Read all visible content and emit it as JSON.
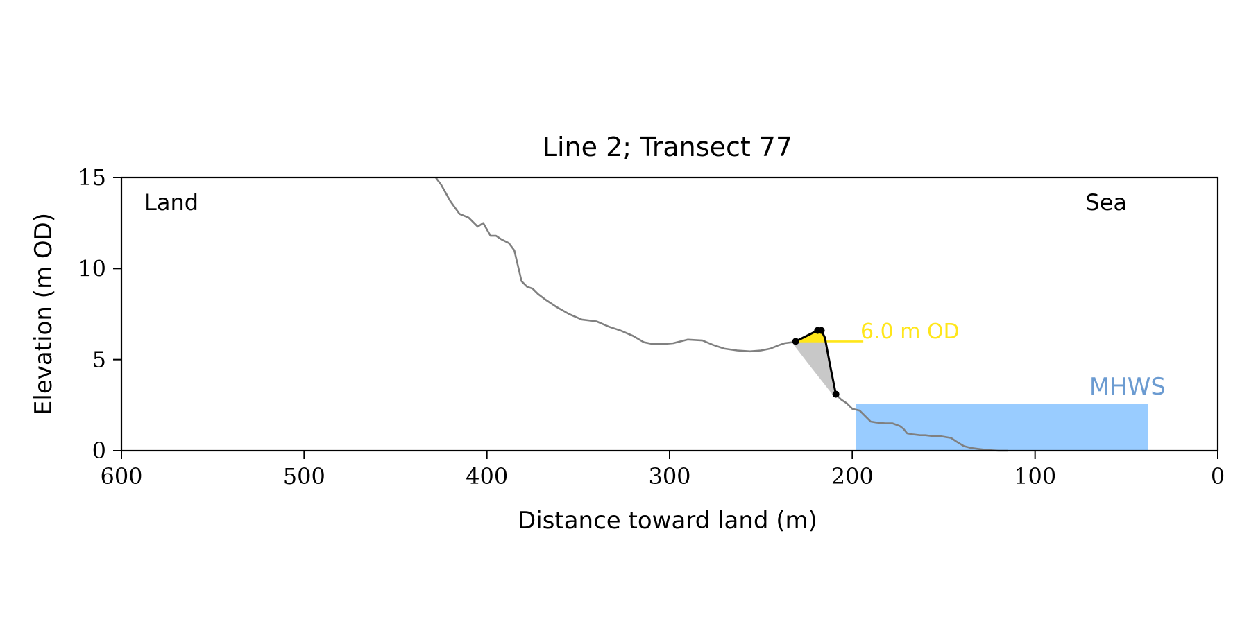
{
  "chart_data": {
    "type": "line",
    "title": "Line 2; Transect 77",
    "xlabel": "Distance toward land (m)",
    "ylabel": "Elevation (m OD)",
    "xlim": [
      600,
      0
    ],
    "ylim": [
      0,
      15
    ],
    "x_ticks": [
      600,
      500,
      400,
      300,
      200,
      100,
      0
    ],
    "y_ticks": [
      0,
      5,
      10,
      15
    ],
    "grid": false,
    "annotations": {
      "land": "Land",
      "sea": "Sea",
      "od_label": "6.0 m OD",
      "mhws_label": "MHWS"
    },
    "colors": {
      "profile": "#808080",
      "dune": "#000000",
      "od_fill": "#ffe61a",
      "od_text": "#ffe61a",
      "sediment_fill": "#c8c8c8",
      "water": "#99ccff",
      "mhws_text": "#6b9bd1"
    },
    "series": [
      {
        "x": [
          428,
          425,
          420,
          415,
          410,
          405,
          402,
          398,
          395,
          392,
          388,
          385,
          381,
          378,
          375,
          372,
          368,
          362,
          355,
          348,
          340,
          333,
          327,
          320,
          314,
          309,
          304,
          298,
          290,
          282,
          276,
          270,
          263,
          256,
          250,
          245,
          240,
          237,
          233
        ],
        "y": [
          15.0,
          14.6,
          13.7,
          13.0,
          12.8,
          12.3,
          12.5,
          11.8,
          11.8,
          11.6,
          11.4,
          11.0,
          9.3,
          9.0,
          8.9,
          8.6,
          8.3,
          7.9,
          7.5,
          7.2,
          7.1,
          6.8,
          6.6,
          6.3,
          5.95,
          5.85,
          5.85,
          5.9,
          6.1,
          6.05,
          5.8,
          5.6,
          5.5,
          5.45,
          5.5,
          5.6,
          5.8,
          5.9,
          5.95
        ]
      },
      {
        "x": [
          209,
          206,
          203,
          200,
          196,
          193,
          190,
          187,
          182,
          178,
          174,
          172,
          170,
          167,
          163,
          160,
          156,
          152,
          149,
          146,
          143,
          139,
          135,
          131,
          127,
          123,
          120,
          115
        ],
        "y": [
          3.1,
          2.8,
          2.6,
          2.3,
          2.2,
          1.9,
          1.6,
          1.55,
          1.5,
          1.5,
          1.35,
          1.2,
          0.95,
          0.9,
          0.85,
          0.85,
          0.8,
          0.8,
          0.75,
          0.7,
          0.5,
          0.25,
          0.15,
          0.1,
          0.05,
          0.02,
          0.0,
          0.0
        ]
      },
      {
        "x": [
          231,
          219,
          217,
          215,
          212,
          209
        ],
        "y": [
          6.0,
          6.6,
          6.6,
          6.2,
          4.6,
          3.1
        ]
      }
    ],
    "dune_points": [
      [
        231,
        6.0
      ],
      [
        219,
        6.6
      ],
      [
        217,
        6.6
      ],
      [
        209,
        3.1
      ]
    ],
    "od_level": {
      "y": 6.0,
      "x_start": 231,
      "x_end": 194
    },
    "sediment_fill": [
      [
        233,
        5.95
      ],
      [
        231,
        6.0
      ],
      [
        219,
        6.6
      ],
      [
        217,
        6.6
      ],
      [
        215,
        6.2
      ],
      [
        212,
        4.6
      ],
      [
        209,
        3.1
      ],
      [
        211,
        3.1
      ],
      [
        222,
        4.5
      ],
      [
        232,
        5.8
      ]
    ],
    "od_fill": [
      [
        231,
        6.0
      ],
      [
        219,
        6.6
      ],
      [
        217,
        6.6
      ],
      [
        215,
        6.2
      ],
      [
        214.5,
        6.0
      ]
    ],
    "mhws": {
      "level": 2.55,
      "x_start": 198,
      "x_end": 38
    }
  }
}
